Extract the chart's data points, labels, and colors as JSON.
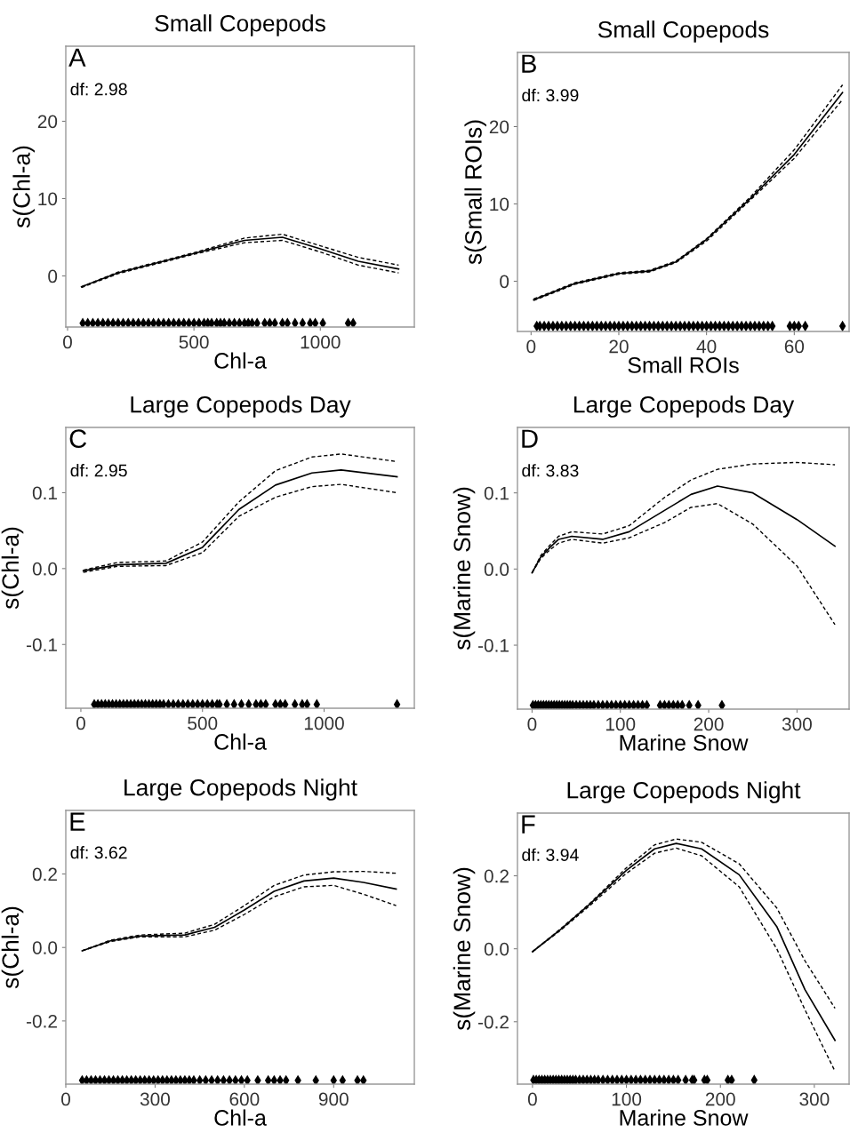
{
  "chart_data": [
    {
      "type": "line",
      "title": "Small Copepods",
      "xlabel": "Chl-a",
      "ylabel": "s(Chl-a)",
      "annotations": [
        "A",
        "df: 2.98"
      ],
      "xlim": [
        -7,
        1372
      ],
      "ylim": [
        -6.6,
        29.7
      ],
      "xticks": [
        0,
        500,
        1000
      ],
      "yticks": [
        0,
        10,
        20
      ],
      "series": [
        {
          "color": "#000000",
          "line_style": "solid",
          "x": [
            55,
            200,
            500,
            700,
            850,
            1000,
            1150,
            1310
          ],
          "values": [
            -1.4,
            0.4,
            2.9,
            4.6,
            5.0,
            3.5,
            1.9,
            0.9
          ]
        },
        {
          "color": "#000000",
          "line_style": "dashed",
          "x": [
            55,
            200,
            500,
            700,
            850,
            1000,
            1150,
            1310
          ],
          "values": [
            -1.5,
            0.3,
            2.8,
            4.3,
            4.6,
            3.1,
            1.4,
            0.4
          ]
        },
        {
          "color": "#000000",
          "line_style": "dashed",
          "x": [
            55,
            200,
            500,
            700,
            850,
            1000,
            1150,
            1310
          ],
          "values": [
            -1.4,
            0.5,
            3.0,
            4.9,
            5.4,
            3.9,
            2.4,
            1.4
          ]
        },
        {
          "type": "scatter",
          "marker": "diamond",
          "color": "#000000",
          "x": [
            60,
            80,
            100,
            120,
            140,
            160,
            180,
            200,
            220,
            240,
            260,
            280,
            300,
            320,
            340,
            360,
            380,
            400,
            420,
            440,
            460,
            480,
            500,
            520,
            540,
            555,
            570,
            590,
            605,
            620,
            640,
            660,
            680,
            700,
            715,
            730,
            750,
            780,
            800,
            820,
            850,
            870,
            900,
            930,
            960,
            980,
            1010,
            1110,
            1130
          ],
          "values": [
            -6.1,
            -6.1,
            -6.1,
            -6.1,
            -6.1,
            -6.1,
            -6.1,
            -6.1,
            -6.1,
            -6.1,
            -6.1,
            -6.1,
            -6.1,
            -6.1,
            -6.1,
            -6.1,
            -6.1,
            -6.1,
            -6.1,
            -6.1,
            -6.1,
            -6.1,
            -6.1,
            -6.1,
            -6.1,
            -6.1,
            -6.1,
            -6.1,
            -6.1,
            -6.1,
            -6.1,
            -6.1,
            -6.1,
            -6.1,
            -6.1,
            -6.1,
            -6.1,
            -6.1,
            -6.1,
            -6.1,
            -6.1,
            -6.1,
            -6.1,
            -6.1,
            -6.1,
            -6.1,
            -6.1,
            -6.1,
            -6.1
          ]
        }
      ]
    },
    {
      "type": "line",
      "title": "Small Copepods",
      "xlabel": "Small ROIs",
      "ylabel": "s(Small ROIs)",
      "annotations": [
        "B",
        "df: 3.99"
      ],
      "xlim": [
        -3.1,
        72.5
      ],
      "ylim": [
        -6.5,
        29.6
      ],
      "xticks": [
        0,
        20,
        40,
        60
      ],
      "yticks": [
        0,
        10,
        20
      ],
      "series": [
        {
          "color": "#000000",
          "line_style": "solid",
          "x": [
            0.6,
            10,
            20,
            27,
            33,
            40,
            50,
            60,
            71
          ],
          "values": [
            -2.4,
            -0.3,
            1.0,
            1.3,
            2.5,
            5.4,
            10.7,
            16.4,
            24.4
          ]
        },
        {
          "color": "#000000",
          "line_style": "dashed",
          "x": [
            0.6,
            10,
            20,
            27,
            33,
            40,
            50,
            60,
            71
          ],
          "values": [
            -2.5,
            -0.4,
            0.9,
            1.2,
            2.4,
            5.2,
            10.5,
            15.9,
            23.5
          ]
        },
        {
          "color": "#000000",
          "line_style": "dashed",
          "x": [
            0.6,
            10,
            20,
            27,
            33,
            40,
            50,
            60,
            71
          ],
          "values": [
            -2.3,
            -0.2,
            1.1,
            1.4,
            2.6,
            5.5,
            10.9,
            17.0,
            25.4
          ]
        },
        {
          "type": "scatter",
          "marker": "diamond",
          "color": "#000000",
          "x": [
            1.3,
            2,
            3,
            4,
            5,
            6,
            7,
            8,
            9,
            10,
            11,
            12,
            13,
            14,
            15,
            16,
            17,
            18,
            19,
            20,
            21,
            22,
            23,
            24,
            25,
            26,
            27,
            28,
            29,
            30,
            31,
            32,
            33,
            34,
            35,
            36,
            37,
            38,
            39,
            40,
            41,
            42,
            43,
            44,
            45,
            46,
            47,
            48,
            49,
            50,
            51,
            52,
            53,
            54,
            55,
            59,
            60,
            61,
            62.5,
            71
          ],
          "values": [
            -5.8,
            -5.8,
            -5.8,
            -5.8,
            -5.8,
            -5.8,
            -5.8,
            -5.8,
            -5.8,
            -5.8,
            -5.8,
            -5.8,
            -5.8,
            -5.8,
            -5.8,
            -5.8,
            -5.8,
            -5.8,
            -5.8,
            -5.8,
            -5.8,
            -5.8,
            -5.8,
            -5.8,
            -5.8,
            -5.8,
            -5.8,
            -5.8,
            -5.8,
            -5.8,
            -5.8,
            -5.8,
            -5.8,
            -5.8,
            -5.8,
            -5.8,
            -5.8,
            -5.8,
            -5.8,
            -5.8,
            -5.8,
            -5.8,
            -5.8,
            -5.8,
            -5.8,
            -5.8,
            -5.8,
            -5.8,
            -5.8,
            -5.8,
            -5.8,
            -5.8,
            -5.8,
            -5.8,
            -5.8,
            -5.8,
            -5.8,
            -5.8,
            -5.8,
            -5.8
          ]
        }
      ]
    },
    {
      "type": "line",
      "title": "Large Copepods Day",
      "xlabel": "Chl-a",
      "ylabel": "s(Chl-a)",
      "annotations": [
        "C",
        "df: 2.95"
      ],
      "xlim": [
        -62,
        1371
      ],
      "ylim": [
        -0.184,
        0.186
      ],
      "xticks": [
        0,
        500,
        1000
      ],
      "yticks": [
        {
          "value": -0.1,
          "label": "-0.1"
        },
        {
          "value": 0,
          "label": "0.0"
        },
        {
          "value": 0.1,
          "label": "0.1"
        }
      ],
      "series": [
        {
          "color": "#000000",
          "line_style": "solid",
          "x": [
            10,
            150,
            350,
            500,
            650,
            800,
            950,
            1070,
            1300
          ],
          "values": [
            -0.003,
            0.005,
            0.007,
            0.028,
            0.078,
            0.11,
            0.126,
            0.13,
            0.121
          ]
        },
        {
          "color": "#000000",
          "line_style": "dashed",
          "x": [
            10,
            150,
            350,
            500,
            650,
            800,
            950,
            1070,
            1300
          ],
          "values": [
            -0.005,
            0.003,
            0.004,
            0.021,
            0.069,
            0.094,
            0.108,
            0.111,
            0.1
          ]
        },
        {
          "color": "#000000",
          "line_style": "dashed",
          "x": [
            10,
            150,
            350,
            500,
            650,
            800,
            950,
            1070,
            1300
          ],
          "values": [
            -0.002,
            0.008,
            0.01,
            0.035,
            0.088,
            0.129,
            0.147,
            0.151,
            0.141
          ]
        },
        {
          "type": "scatter",
          "marker": "diamond",
          "color": "#000000",
          "x": [
            55,
            70,
            85,
            100,
            115,
            130,
            145,
            160,
            175,
            190,
            205,
            220,
            235,
            250,
            265,
            280,
            295,
            310,
            325,
            340,
            360,
            380,
            400,
            420,
            440,
            460,
            480,
            500,
            520,
            540,
            560,
            570,
            600,
            630,
            660,
            690,
            720,
            740,
            760,
            800,
            820,
            840,
            880,
            910,
            930,
            970,
            1300
          ],
          "values": [
            -0.179,
            -0.179,
            -0.179,
            -0.179,
            -0.179,
            -0.179,
            -0.179,
            -0.179,
            -0.179,
            -0.179,
            -0.179,
            -0.179,
            -0.179,
            -0.179,
            -0.179,
            -0.179,
            -0.179,
            -0.179,
            -0.179,
            -0.179,
            -0.179,
            -0.179,
            -0.179,
            -0.179,
            -0.179,
            -0.179,
            -0.179,
            -0.179,
            -0.179,
            -0.179,
            -0.179,
            -0.179,
            -0.179,
            -0.179,
            -0.179,
            -0.179,
            -0.179,
            -0.179,
            -0.179,
            -0.179,
            -0.179,
            -0.179,
            -0.179,
            -0.179,
            -0.179,
            -0.179,
            -0.179
          ]
        }
      ]
    },
    {
      "type": "line",
      "title": "Large Copepods Day",
      "xlabel": "Marine Snow",
      "ylabel": "s(Marine Snow)",
      "annotations": [
        "D",
        "df: 3.83"
      ],
      "xlim": [
        -16.5,
        359
      ],
      "ylim": [
        -0.184,
        0.186
      ],
      "xticks": [
        0,
        100,
        200,
        300
      ],
      "yticks": [
        {
          "value": -0.1,
          "label": "-0.1"
        },
        {
          "value": 0,
          "label": "0.0"
        },
        {
          "value": 0.1,
          "label": "0.1"
        }
      ],
      "series": [
        {
          "color": "#000000",
          "line_style": "solid",
          "x": [
            0,
            10,
            20,
            30,
            45,
            80,
            110,
            150,
            180,
            210,
            250,
            300,
            343
          ],
          "values": [
            -0.005,
            0.016,
            0.028,
            0.039,
            0.043,
            0.039,
            0.049,
            0.077,
            0.098,
            0.109,
            0.1,
            0.065,
            0.03
          ]
        },
        {
          "color": "#000000",
          "line_style": "dashed",
          "x": [
            0,
            10,
            20,
            30,
            45,
            80,
            110,
            150,
            180,
            210,
            250,
            300,
            343
          ],
          "values": [
            -0.005,
            0.014,
            0.025,
            0.034,
            0.039,
            0.034,
            0.041,
            0.061,
            0.081,
            0.086,
            0.059,
            0.004,
            -0.073
          ]
        },
        {
          "color": "#000000",
          "line_style": "dashed",
          "x": [
            0,
            10,
            20,
            30,
            45,
            80,
            110,
            150,
            180,
            210,
            250,
            300,
            343
          ],
          "values": [
            -0.005,
            0.018,
            0.031,
            0.043,
            0.049,
            0.046,
            0.057,
            0.094,
            0.117,
            0.131,
            0.138,
            0.14,
            0.137
          ]
        },
        {
          "type": "scatter",
          "marker": "diamond",
          "color": "#000000",
          "x": [
            1,
            4,
            7,
            10,
            13,
            16,
            19,
            22,
            25,
            28,
            31,
            34,
            37,
            40,
            43,
            46,
            50,
            54,
            58,
            62,
            66,
            70,
            75,
            80,
            85,
            90,
            95,
            100,
            105,
            110,
            115,
            120,
            125,
            130,
            145,
            150,
            155,
            160,
            165,
            170,
            178,
            188,
            215
          ],
          "values": [
            -0.179,
            -0.179,
            -0.179,
            -0.179,
            -0.179,
            -0.179,
            -0.179,
            -0.179,
            -0.179,
            -0.179,
            -0.179,
            -0.179,
            -0.179,
            -0.179,
            -0.179,
            -0.179,
            -0.179,
            -0.179,
            -0.179,
            -0.179,
            -0.179,
            -0.179,
            -0.179,
            -0.179,
            -0.179,
            -0.179,
            -0.179,
            -0.179,
            -0.179,
            -0.179,
            -0.179,
            -0.179,
            -0.179,
            -0.179,
            -0.179,
            -0.179,
            -0.179,
            -0.179,
            -0.179,
            -0.179,
            -0.179,
            -0.179,
            -0.179
          ]
        }
      ]
    },
    {
      "type": "line",
      "title": "Large Copepods Night",
      "xlabel": "Chl-a",
      "ylabel": "s(Chl-a)",
      "annotations": [
        "E",
        "df: 3.62"
      ],
      "xlim": [
        0,
        1171
      ],
      "ylim": [
        -0.372,
        0.373
      ],
      "xticks": [
        0,
        300,
        600,
        900
      ],
      "yticks": [
        {
          "value": -0.2,
          "label": "-0.2"
        },
        {
          "value": 0,
          "label": "0.0"
        },
        {
          "value": 0.2,
          "label": "0.2"
        }
      ],
      "series": [
        {
          "color": "#000000",
          "line_style": "solid",
          "x": [
            55,
            150,
            250,
            400,
            500,
            600,
            700,
            800,
            900,
            1000,
            1110
          ],
          "values": [
            -0.009,
            0.018,
            0.031,
            0.034,
            0.055,
            0.102,
            0.153,
            0.181,
            0.189,
            0.177,
            0.159
          ]
        },
        {
          "color": "#000000",
          "line_style": "dashed",
          "x": [
            55,
            150,
            250,
            400,
            500,
            600,
            700,
            800,
            900,
            1000,
            1110
          ],
          "values": [
            -0.009,
            0.016,
            0.029,
            0.029,
            0.047,
            0.09,
            0.138,
            0.165,
            0.169,
            0.145,
            0.114
          ]
        },
        {
          "color": "#000000",
          "line_style": "dashed",
          "x": [
            55,
            150,
            250,
            400,
            500,
            600,
            700,
            800,
            900,
            1000,
            1110
          ],
          "values": [
            -0.009,
            0.02,
            0.034,
            0.039,
            0.063,
            0.114,
            0.169,
            0.197,
            0.206,
            0.207,
            0.202
          ]
        },
        {
          "type": "scatter",
          "marker": "diamond",
          "color": "#000000",
          "x": [
            55,
            70,
            85,
            100,
            115,
            130,
            145,
            160,
            175,
            190,
            205,
            220,
            235,
            250,
            265,
            280,
            295,
            310,
            325,
            340,
            355,
            370,
            385,
            400,
            415,
            430,
            450,
            470,
            490,
            510,
            530,
            550,
            570,
            590,
            610,
            645,
            680,
            700,
            720,
            740,
            780,
            840,
            900,
            930,
            980,
            1000
          ],
          "values": [
            -0.362,
            -0.362,
            -0.362,
            -0.362,
            -0.362,
            -0.362,
            -0.362,
            -0.362,
            -0.362,
            -0.362,
            -0.362,
            -0.362,
            -0.362,
            -0.362,
            -0.362,
            -0.362,
            -0.362,
            -0.362,
            -0.362,
            -0.362,
            -0.362,
            -0.362,
            -0.362,
            -0.362,
            -0.362,
            -0.362,
            -0.362,
            -0.362,
            -0.362,
            -0.362,
            -0.362,
            -0.362,
            -0.362,
            -0.362,
            -0.362,
            -0.362,
            -0.362,
            -0.362,
            -0.362,
            -0.362,
            -0.362,
            -0.362,
            -0.362,
            -0.362,
            -0.362,
            -0.362
          ]
        }
      ]
    },
    {
      "type": "line",
      "title": "Large Copepods Night",
      "xlabel": "Marine Snow",
      "ylabel": "s(Marine Snow)",
      "annotations": [
        "F",
        "df: 3.94"
      ],
      "xlim": [
        -16,
        337
      ],
      "ylim": [
        -0.371,
        0.372
      ],
      "xticks": [
        0,
        100,
        200,
        300
      ],
      "yticks": [
        {
          "value": -0.2,
          "label": "-0.2"
        },
        {
          "value": 0,
          "label": "0.0"
        },
        {
          "value": 0.2,
          "label": "0.2"
        }
      ],
      "series": [
        {
          "color": "#000000",
          "line_style": "solid",
          "x": [
            0,
            30,
            60,
            100,
            130,
            153,
            180,
            220,
            260,
            290,
            322
          ],
          "values": [
            -0.008,
            0.053,
            0.12,
            0.215,
            0.274,
            0.289,
            0.274,
            0.203,
            0.061,
            -0.112,
            -0.251
          ]
        },
        {
          "color": "#000000",
          "line_style": "dashed",
          "x": [
            0,
            30,
            60,
            100,
            130,
            153,
            180,
            220,
            260,
            290,
            322
          ],
          "values": [
            -0.008,
            0.051,
            0.116,
            0.207,
            0.262,
            0.276,
            0.255,
            0.17,
            0.0,
            -0.167,
            -0.336
          ]
        },
        {
          "color": "#000000",
          "line_style": "dashed",
          "x": [
            0,
            30,
            60,
            100,
            130,
            153,
            180,
            220,
            260,
            290,
            322
          ],
          "values": [
            -0.008,
            0.055,
            0.122,
            0.222,
            0.285,
            0.301,
            0.292,
            0.233,
            0.112,
            -0.033,
            -0.163
          ]
        },
        {
          "type": "scatter",
          "marker": "diamond",
          "color": "#000000",
          "x": [
            1,
            4,
            7,
            10,
            13,
            16,
            19,
            22,
            25,
            28,
            31,
            34,
            37,
            40,
            43,
            46,
            50,
            54,
            58,
            62,
            66,
            70,
            75,
            80,
            85,
            90,
            95,
            100,
            105,
            110,
            115,
            120,
            125,
            130,
            135,
            140,
            145,
            150,
            155,
            163,
            170,
            172,
            183,
            186,
            208,
            212,
            236
          ],
          "values": [
            -0.36,
            -0.36,
            -0.36,
            -0.36,
            -0.36,
            -0.36,
            -0.36,
            -0.36,
            -0.36,
            -0.36,
            -0.36,
            -0.36,
            -0.36,
            -0.36,
            -0.36,
            -0.36,
            -0.36,
            -0.36,
            -0.36,
            -0.36,
            -0.36,
            -0.36,
            -0.36,
            -0.36,
            -0.36,
            -0.36,
            -0.36,
            -0.36,
            -0.36,
            -0.36,
            -0.36,
            -0.36,
            -0.36,
            -0.36,
            -0.36,
            -0.36,
            -0.36,
            -0.36,
            -0.36,
            -0.36,
            -0.36,
            -0.36,
            -0.36,
            -0.36,
            -0.36,
            -0.36,
            -0.36
          ]
        }
      ]
    }
  ]
}
